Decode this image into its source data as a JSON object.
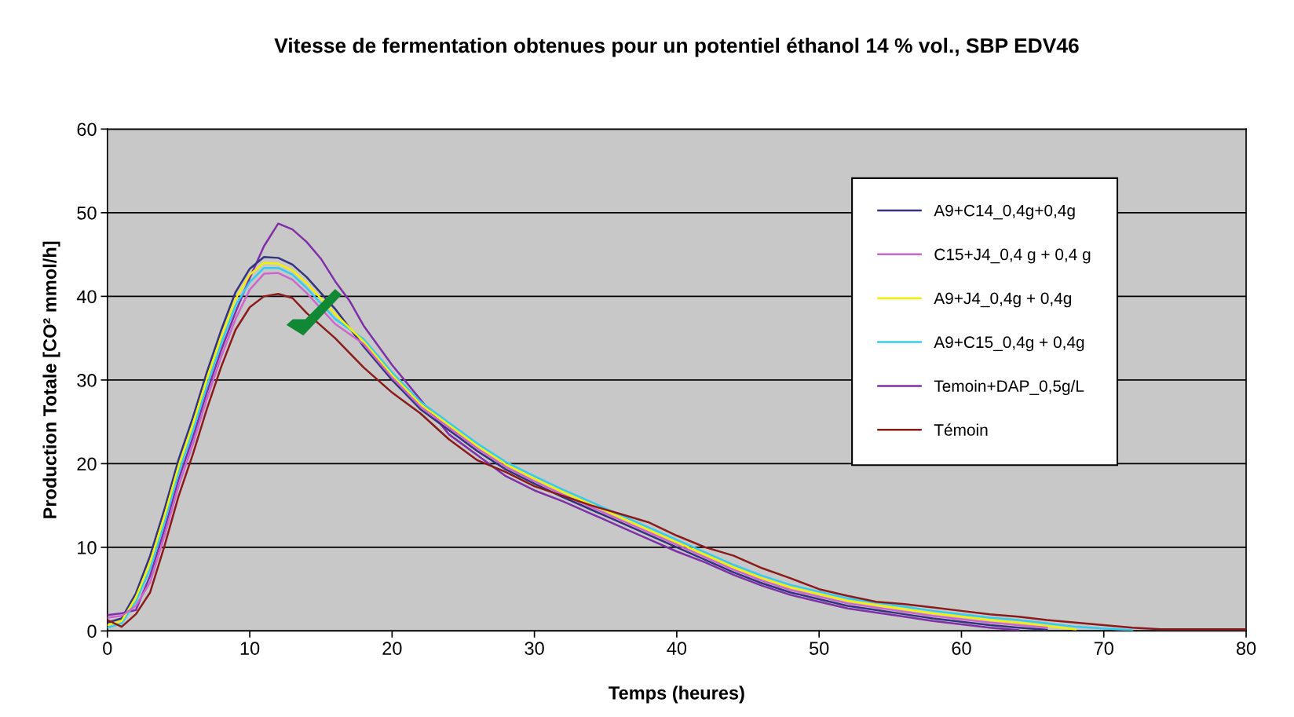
{
  "chart_data": {
    "type": "line",
    "title": "Vitesse de fermentation obtenues pour un potentiel éthanol 14 % vol., SBP EDV46",
    "xlabel": "Temps (heures)",
    "ylabel": "Production Totale [CO² mmol/h]",
    "xlim": [
      0,
      80
    ],
    "xticks": [
      0,
      10,
      20,
      30,
      40,
      50,
      60,
      70,
      80
    ],
    "ylim": [
      0,
      60
    ],
    "yticks": [
      0,
      10,
      20,
      30,
      40,
      50,
      60
    ],
    "grid": "y",
    "legend": "top right",
    "marker": "none",
    "line_style": "solid",
    "series": [
      {
        "name": "A9+C14_0,4g+0,4g",
        "color": "#333380",
        "x": [
          0,
          1,
          2,
          3,
          4,
          5,
          6,
          7,
          8,
          9,
          10,
          11,
          12,
          13,
          14,
          16,
          18,
          20,
          22,
          24,
          26,
          28,
          30,
          32,
          34,
          36,
          38,
          40,
          42,
          44,
          46,
          48,
          50,
          52,
          54,
          56,
          58,
          60,
          62,
          64,
          66
        ],
        "values": [
          1.0,
          1.5,
          4.5,
          9,
          14.5,
          20.5,
          25.5,
          31,
          36,
          40.5,
          43.3,
          44.7,
          44.6,
          43.8,
          42.3,
          38.5,
          34,
          30,
          26.5,
          24,
          21.5,
          19.3,
          17.6,
          16,
          14.5,
          13,
          11.5,
          10,
          8.5,
          7,
          5.7,
          4.6,
          3.8,
          3,
          2.5,
          2,
          1.5,
          1.1,
          0.7,
          0.4,
          0.15
        ]
      },
      {
        "name": "C15+J4_0,4 g + 0,4 g",
        "color": "#cc66cc",
        "x": [
          0,
          1,
          2,
          3,
          4,
          5,
          6,
          7,
          8,
          9,
          10,
          11,
          12,
          13,
          14,
          16,
          18,
          20,
          22,
          24,
          26,
          28,
          30,
          32,
          34,
          36,
          38,
          40,
          42,
          44,
          46,
          48,
          50,
          52,
          54,
          56,
          58,
          60,
          62,
          64,
          66
        ],
        "values": [
          1.6,
          1.8,
          3.0,
          5.8,
          11.3,
          17.3,
          22.3,
          27.8,
          32.8,
          37.3,
          40.8,
          42.7,
          42.8,
          42.0,
          40.4,
          36.7,
          34.3,
          30.3,
          26.8,
          24.3,
          21.8,
          19.6,
          17.9,
          16.3,
          14.8,
          13.3,
          11.8,
          10.3,
          8.8,
          7.3,
          6,
          4.9,
          4.1,
          3.3,
          2.8,
          2.3,
          1.8,
          1.4,
          1,
          0.7,
          0.4
        ]
      },
      {
        "name": "A9+J4_0,4g + 0,4g",
        "color": "#f2f200",
        "x": [
          0,
          1,
          2,
          3,
          4,
          5,
          6,
          7,
          8,
          9,
          10,
          11,
          12,
          13,
          14,
          16,
          18,
          20,
          22,
          24,
          26,
          28,
          30,
          32,
          34,
          36,
          38,
          40,
          42,
          44,
          46,
          48,
          50,
          52,
          54,
          56,
          58,
          60,
          62,
          64,
          66,
          68
        ],
        "values": [
          0.7,
          1.2,
          4.0,
          8.2,
          13.7,
          19.7,
          24.7,
          30.2,
          35.2,
          39.7,
          42.6,
          44,
          43.9,
          43.1,
          41.6,
          37.9,
          34.6,
          30.6,
          27.1,
          24.6,
          22.1,
          19.9,
          18.2,
          16.6,
          15.1,
          13.6,
          12.1,
          10.6,
          9.1,
          7.6,
          6.3,
          5.2,
          4.4,
          3.6,
          3.1,
          2.6,
          2.1,
          1.7,
          1.3,
          1,
          0.6,
          0.2
        ]
      },
      {
        "name": "A9+C15_0,4g + 0,4g",
        "color": "#33ccee",
        "x": [
          0,
          1,
          2,
          3,
          4,
          5,
          6,
          7,
          8,
          9,
          10,
          11,
          12,
          13,
          14,
          16,
          18,
          20,
          22,
          24,
          26,
          28,
          30,
          32,
          34,
          36,
          38,
          40,
          42,
          44,
          46,
          48,
          50,
          52,
          54,
          56,
          58,
          60,
          62,
          64,
          66,
          68,
          70,
          72
        ],
        "values": [
          0.4,
          0.9,
          3.5,
          7.4,
          12.9,
          18.9,
          23.9,
          29.4,
          34.4,
          38.9,
          41.7,
          43.4,
          43.4,
          42.6,
          41.0,
          37.3,
          34.9,
          30.9,
          27.4,
          24.9,
          22.4,
          20.2,
          18.5,
          16.9,
          15.4,
          13.9,
          12.4,
          10.9,
          9.4,
          7.9,
          6.6,
          5.5,
          4.7,
          3.9,
          3.4,
          2.9,
          2.4,
          2,
          1.6,
          1.3,
          0.9,
          0.5,
          0.3,
          0.1
        ]
      },
      {
        "name": "Temoin+DAP_0,5g/L",
        "color": "#7f2fa8",
        "x": [
          0,
          1,
          2,
          3,
          4,
          5,
          6,
          7,
          8,
          9,
          10,
          11,
          12,
          13,
          14,
          15,
          16,
          17,
          18,
          20,
          24,
          26,
          28,
          30,
          32,
          34,
          36,
          38,
          40,
          42,
          44,
          46,
          48,
          50,
          52,
          54,
          56,
          58,
          60,
          62,
          64
        ],
        "values": [
          1.9,
          2.1,
          2.5,
          6.6,
          12.1,
          18.1,
          23.1,
          28.6,
          33.6,
          38.1,
          42.2,
          46,
          48.7,
          48,
          46.5,
          44.5,
          41.8,
          39.5,
          36.5,
          31.8,
          23.5,
          21.0,
          18.5,
          16.8,
          15.5,
          14,
          12.5,
          11,
          9.5,
          8.2,
          6.7,
          5.4,
          4.3,
          3.5,
          2.7,
          2.2,
          1.7,
          1.2,
          0.8,
          0.4,
          0.1
        ]
      },
      {
        "name": "Témoin",
        "color": "#8b1a1a",
        "x": [
          0,
          1,
          2,
          3,
          4,
          5,
          6,
          7,
          8,
          9,
          10,
          11,
          12,
          13,
          14,
          16,
          18,
          20,
          22,
          24,
          26,
          28,
          30,
          34,
          36,
          38,
          40,
          42,
          44,
          46,
          48,
          50,
          52,
          54,
          56,
          58,
          60,
          62,
          64,
          66,
          68,
          70,
          72,
          74,
          80
        ],
        "values": [
          1.3,
          0.5,
          2.0,
          4.6,
          10.1,
          16.1,
          21.1,
          26.6,
          31.6,
          36,
          38.7,
          40,
          40.3,
          39.8,
          38,
          35,
          31.5,
          28.5,
          26,
          22.9,
          20.4,
          19.0,
          17.3,
          15,
          14,
          13,
          11.4,
          10,
          9,
          7.5,
          6.3,
          5,
          4.2,
          3.5,
          3.2,
          2.8,
          2.4,
          2.0,
          1.7,
          1.3,
          1.0,
          0.7,
          0.4,
          0.2,
          0.2
        ]
      }
    ]
  }
}
